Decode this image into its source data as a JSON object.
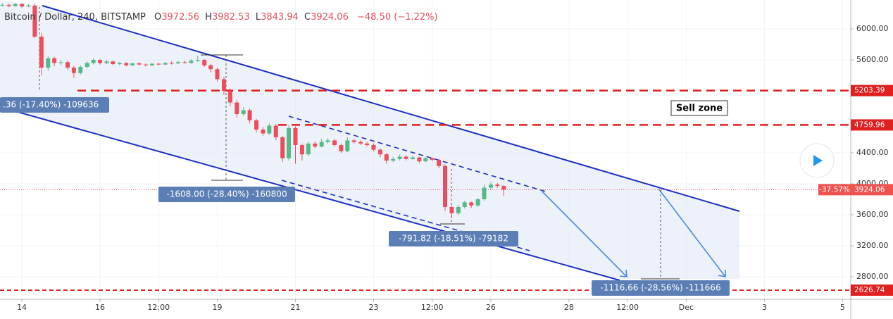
{
  "chart_data": {
    "type": "candlestick",
    "title": "Bitcoin / Dollar, 240, BITSTAMP",
    "ohlc_letters": [
      "O",
      "H",
      "L",
      "C"
    ],
    "change": "−48.50 (−1.22%)",
    "up_color": "#53b987",
    "down_color": "#eb4d5c",
    "x": [
      13.5,
      13.67,
      13.83,
      14,
      14.17,
      14.33,
      14.5,
      14.67,
      14.83,
      15,
      15.17,
      15.33,
      15.5,
      15.67,
      15.83,
      16,
      16.17,
      16.33,
      16.5,
      16.67,
      16.83,
      17,
      17.17,
      17.33,
      17.5,
      17.67,
      17.83,
      18,
      18.17,
      18.33,
      18.5,
      18.67,
      18.83,
      19,
      19.17,
      19.33,
      19.5,
      19.67,
      19.83,
      20,
      20.17,
      20.33,
      20.5,
      20.67,
      20.83,
      21,
      21.17,
      21.33,
      21.5,
      21.67,
      21.83,
      22,
      22.17,
      22.33,
      22.5,
      22.67,
      22.83,
      23,
      23.17,
      23.33,
      23.5,
      23.67,
      23.83,
      24,
      24.17,
      24.33,
      24.5,
      24.67,
      24.83,
      25,
      25.17,
      25.33,
      25.5,
      25.67,
      25.83,
      26,
      26.17,
      26.33
    ],
    "open": [
      6300,
      6310,
      6295,
      6320,
      6290,
      6300,
      5900,
      5500,
      5620,
      5560,
      5570,
      5500,
      5430,
      5510,
      5560,
      5600,
      5560,
      5580,
      5545,
      5560,
      5530,
      5555,
      5540,
      5530,
      5550,
      5540,
      5560,
      5555,
      5570,
      5560,
      5590,
      5600,
      5530,
      5480,
      5350,
      5200,
      5050,
      4900,
      4950,
      4820,
      4700,
      4650,
      4750,
      4600,
      4330,
      4720,
      4500,
      4380,
      4520,
      4480,
      4540,
      4560,
      4500,
      4420,
      4560,
      4540,
      4520,
      4500,
      4440,
      4380,
      4300,
      4320,
      4350,
      4320,
      4340,
      4290,
      4330,
      4310,
      4230,
      3700,
      3620,
      3700,
      3760,
      3720,
      3800,
      3950,
      3990,
      3972.56
    ],
    "high": [
      6330,
      6325,
      6335,
      6330,
      6320,
      6330,
      5950,
      5650,
      5640,
      5600,
      5590,
      5520,
      5530,
      5580,
      5620,
      5610,
      5600,
      5590,
      5575,
      5570,
      5565,
      5570,
      5555,
      5560,
      5565,
      5575,
      5580,
      5585,
      5590,
      5610,
      5650,
      5610,
      5545,
      5500,
      5380,
      5230,
      5080,
      4990,
      4970,
      4840,
      4730,
      4780,
      4770,
      4620,
      4760,
      4740,
      4520,
      4540,
      4550,
      4580,
      4590,
      4580,
      4520,
      4600,
      4580,
      4560,
      4540,
      4520,
      4460,
      4400,
      4350,
      4380,
      4370,
      4360,
      4350,
      4350,
      4340,
      4320,
      4250,
      3720,
      3730,
      3780,
      3770,
      3820,
      3990,
      4020,
      4010,
      3982.53
    ],
    "low": [
      6290,
      6280,
      6285,
      6275,
      6280,
      5880,
      5400,
      5460,
      5520,
      5530,
      5470,
      5370,
      5410,
      5490,
      5540,
      5540,
      5545,
      5530,
      5530,
      5515,
      5520,
      5525,
      5515,
      5520,
      5530,
      5530,
      5540,
      5545,
      5550,
      5550,
      5575,
      5510,
      5440,
      5320,
      5150,
      5000,
      4860,
      4880,
      4780,
      4660,
      4620,
      4630,
      4560,
      4280,
      4300,
      4260,
      4300,
      4360,
      4460,
      4470,
      4520,
      4480,
      4400,
      4410,
      4520,
      4500,
      4480,
      4420,
      4340,
      4260,
      4280,
      4300,
      4300,
      4310,
      4270,
      4280,
      4290,
      4200,
      3650,
      3560,
      3600,
      3680,
      3690,
      3700,
      3780,
      3930,
      3950,
      3843.94
    ],
    "close": [
      6310,
      6295,
      6320,
      6290,
      6300,
      5900,
      5500,
      5620,
      5560,
      5570,
      5500,
      5430,
      5510,
      5560,
      5600,
      5560,
      5580,
      5545,
      5560,
      5530,
      5555,
      5540,
      5530,
      5550,
      5540,
      5560,
      5555,
      5570,
      5560,
      5590,
      5600,
      5530,
      5480,
      5350,
      5200,
      5050,
      4900,
      4950,
      4820,
      4700,
      4650,
      4750,
      4600,
      4330,
      4720,
      4500,
      4380,
      4520,
      4480,
      4540,
      4560,
      4500,
      4420,
      4560,
      4540,
      4520,
      4500,
      4440,
      4380,
      4300,
      4320,
      4350,
      4320,
      4340,
      4290,
      4330,
      4310,
      4230,
      3700,
      3620,
      3700,
      3760,
      3720,
      3800,
      3950,
      3990,
      3972.56,
      3924.06
    ],
    "xlim": [
      13.44,
      35.21
    ],
    "xticks": [
      14,
      16,
      {
        "value": 17.5,
        "label": "12:00"
      },
      19,
      21,
      23,
      {
        "value": 24.5,
        "label": "12:00"
      },
      26,
      28,
      {
        "value": 29.5,
        "label": "12:00"
      },
      {
        "value": 31,
        "label": "Dec"
      },
      {
        "value": 33,
        "label": "3"
      },
      {
        "value": 35,
        "label": "5"
      }
    ],
    "ylim": [
      2509,
      6373
    ],
    "yticks": [
      {
        "value": 2800,
        "label": "2800.00"
      },
      {
        "value": 3200,
        "label": "3200.00"
      },
      {
        "value": 3600,
        "label": "3600.00"
      },
      {
        "value": 4000,
        "label": "4000.00"
      },
      {
        "value": 4400,
        "label": "4400.00"
      },
      {
        "value": 5600,
        "label": "5600.00"
      },
      {
        "value": 6000,
        "label": "6000.00"
      }
    ],
    "grid": true,
    "levels": [
      {
        "value": 5203.39,
        "color": "#e02020"
      },
      {
        "value": 4759.96,
        "color": "#e02020"
      },
      {
        "value": 2626.74,
        "color": "#e02020"
      }
    ],
    "last_change_label": "-37.57%",
    "last_color": "#ef5350",
    "annotations": [
      "Sell zone",
      ".36 (-17.40%) -109636",
      "-1608.00 (-28.40%) -160800",
      "-791.82 (-18.51%) -79182",
      "-1116.66 (-28.56%) -111666"
    ]
  }
}
